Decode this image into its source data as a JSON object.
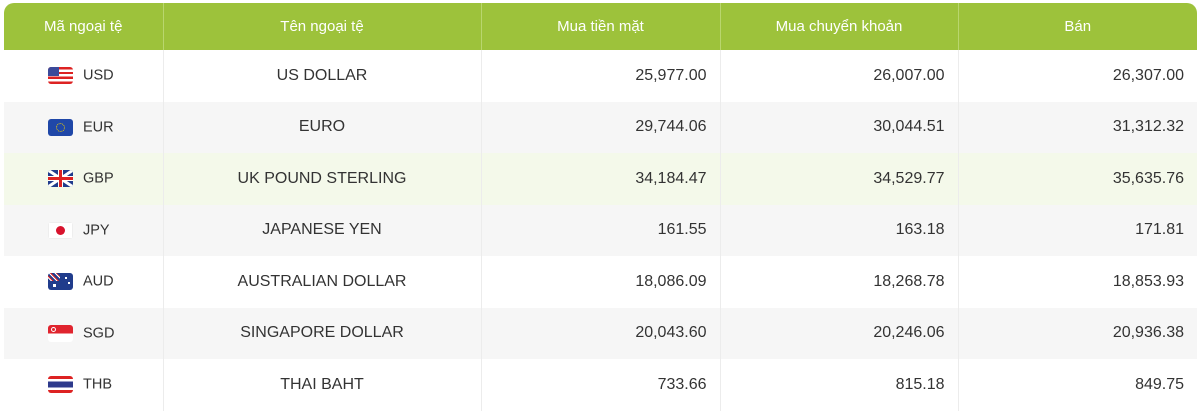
{
  "columns": [
    "Mã ngoại tệ",
    "Tên ngoại tệ",
    "Mua tiền mặt",
    "Mua chuyển khoản",
    "Bán"
  ],
  "header_color": "#9dc23b",
  "rows": [
    {
      "code": "USD",
      "name": "US DOLLAR",
      "cash": "25,977.00",
      "transfer": "26,007.00",
      "sell": "26,307.00",
      "flag": "us-flag-icon"
    },
    {
      "code": "EUR",
      "name": "EURO",
      "cash": "29,744.06",
      "transfer": "30,044.51",
      "sell": "31,312.32",
      "flag": "eu-flag-icon"
    },
    {
      "code": "GBP",
      "name": "UK POUND STERLING",
      "cash": "34,184.47",
      "transfer": "34,529.77",
      "sell": "35,635.76",
      "flag": "uk-flag-icon"
    },
    {
      "code": "JPY",
      "name": "JAPANESE YEN",
      "cash": "161.55",
      "transfer": "163.18",
      "sell": "171.81",
      "flag": "japan-flag-icon"
    },
    {
      "code": "AUD",
      "name": "AUSTRALIAN DOLLAR",
      "cash": "18,086.09",
      "transfer": "18,268.78",
      "sell": "18,853.93",
      "flag": "australia-flag-icon"
    },
    {
      "code": "SGD",
      "name": "SINGAPORE DOLLAR",
      "cash": "20,043.60",
      "transfer": "20,246.06",
      "sell": "20,936.38",
      "flag": "singapore-flag-icon"
    },
    {
      "code": "THB",
      "name": "THAI BAHT",
      "cash": "733.66",
      "transfer": "815.18",
      "sell": "849.75",
      "flag": "thailand-flag-icon"
    }
  ]
}
